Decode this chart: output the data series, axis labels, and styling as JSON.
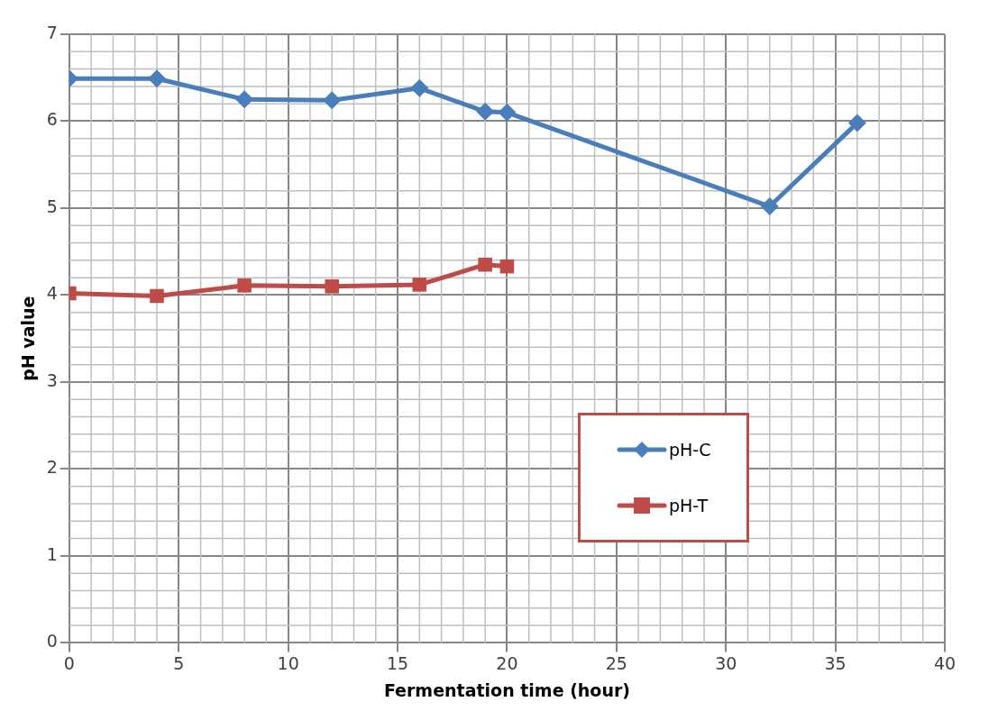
{
  "chart_data": {
    "type": "line",
    "xlabel": "Fermentation time (hour)",
    "ylabel": "pH value",
    "xlim": [
      0,
      40
    ],
    "xticks": [
      0,
      5,
      10,
      15,
      20,
      25,
      30,
      35,
      40
    ],
    "ylim": [
      0,
      7
    ],
    "yticks": [
      0,
      1,
      2,
      3,
      4,
      5,
      6,
      7
    ],
    "grid": true,
    "legend": "right",
    "line_style": "solid",
    "series": [
      {
        "name": "pH-C",
        "color": "#4a7ebb",
        "marker": "diamond",
        "x": [
          0,
          4,
          8,
          12,
          16,
          19,
          20,
          32,
          36
        ],
        "values": [
          6.49,
          6.49,
          6.25,
          6.24,
          6.38,
          6.11,
          6.1,
          5.02,
          5.98
        ]
      },
      {
        "name": "pH-T",
        "color": "#be4b48",
        "marker": "square",
        "x": [
          0,
          4,
          8,
          12,
          16,
          19,
          20
        ],
        "values": [
          4.02,
          3.99,
          4.11,
          4.1,
          4.12,
          4.35,
          4.33
        ]
      }
    ]
  }
}
